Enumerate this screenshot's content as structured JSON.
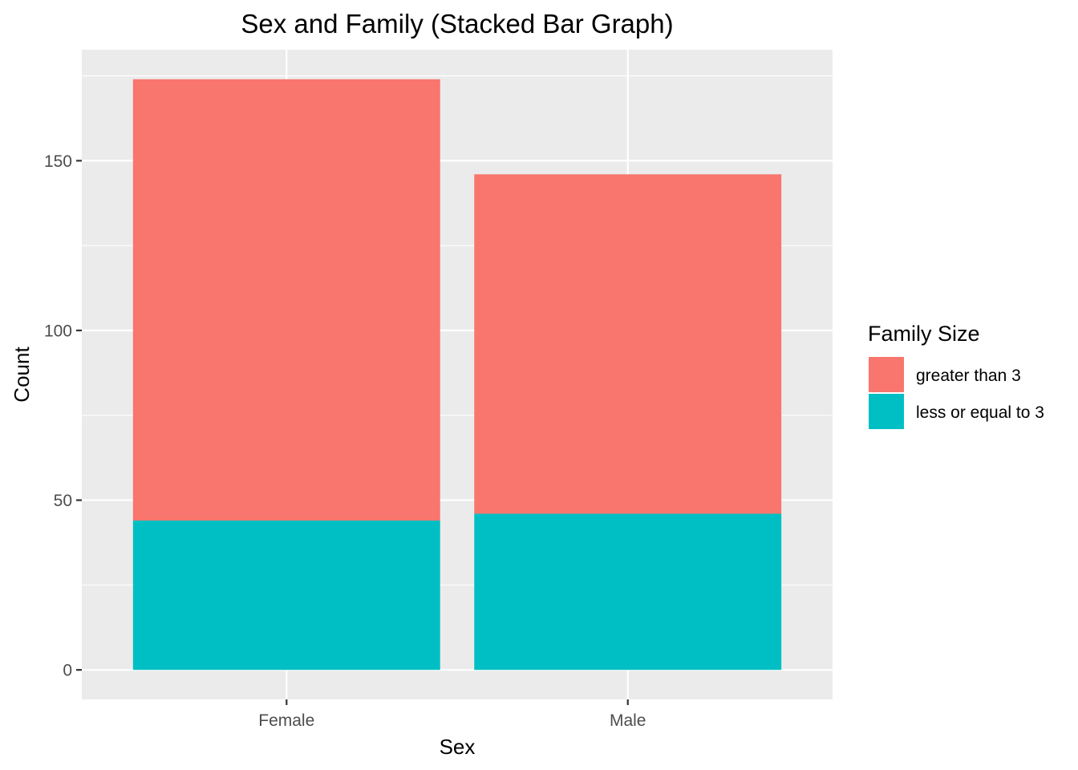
{
  "chart_data": {
    "type": "bar",
    "stacked": true,
    "title": "Sex and Family (Stacked Bar Graph)",
    "xlabel": "Sex",
    "ylabel": "Count",
    "categories": [
      "Female",
      "Male"
    ],
    "series": [
      {
        "name": "greater than 3",
        "values": [
          130,
          100
        ],
        "color": "#F8766D"
      },
      {
        "name": "less or equal to 3",
        "values": [
          44,
          46
        ],
        "color": "#00BFC4"
      }
    ],
    "ylim": [
      -8.7,
      182.7
    ],
    "yticks": [
      0,
      50,
      100,
      150
    ],
    "grid": true,
    "legend": {
      "title": "Family Size",
      "position": "right"
    },
    "panel_color": "#EBEBEB"
  }
}
